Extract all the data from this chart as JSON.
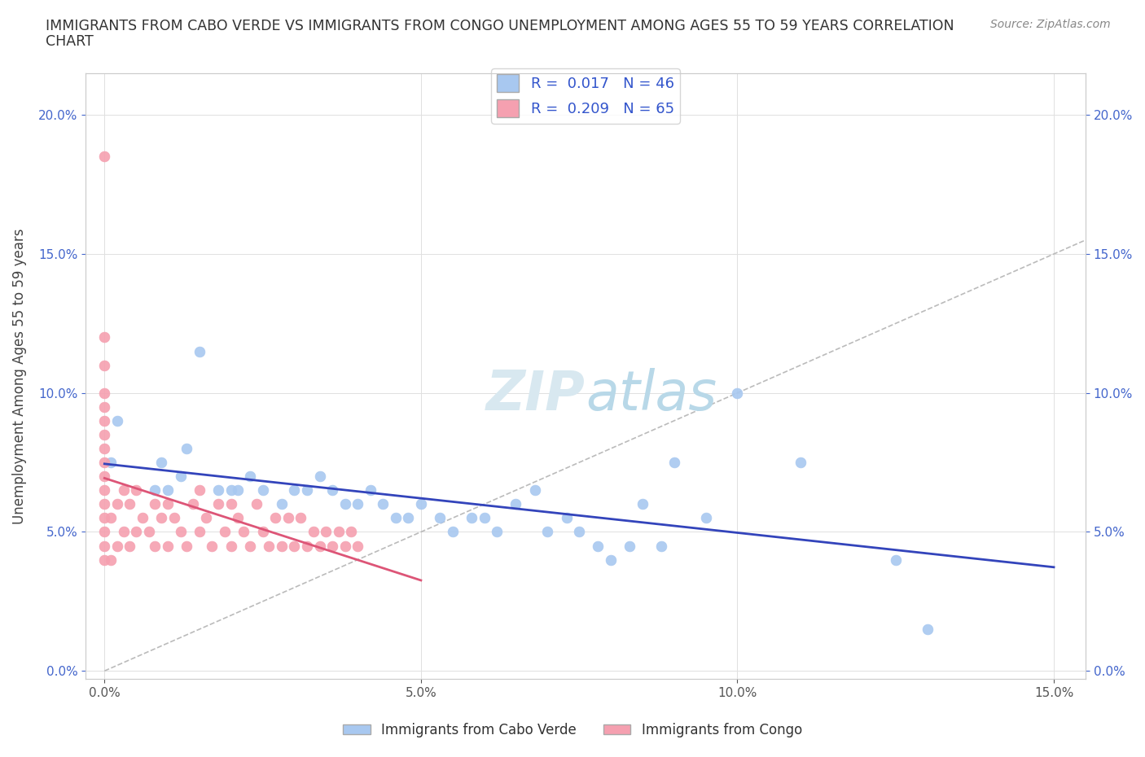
{
  "title_line1": "IMMIGRANTS FROM CABO VERDE VS IMMIGRANTS FROM CONGO UNEMPLOYMENT AMONG AGES 55 TO 59 YEARS CORRELATION",
  "title_line2": "CHART",
  "source": "Source: ZipAtlas.com",
  "ylabel": "Unemployment Among Ages 55 to 59 years",
  "xlim": [
    -0.003,
    0.155
  ],
  "ylim": [
    -0.003,
    0.215
  ],
  "x_ticks": [
    0.0,
    0.05,
    0.1,
    0.15
  ],
  "x_tick_labels": [
    "0.0%",
    "5.0%",
    "10.0%",
    "15.0%"
  ],
  "y_ticks": [
    0.0,
    0.05,
    0.1,
    0.15,
    0.2
  ],
  "y_tick_labels": [
    "0.0%",
    "5.0%",
    "10.0%",
    "15.0%",
    "20.0%"
  ],
  "cabo_verde_color": "#a8c8f0",
  "congo_color": "#f5a0b0",
  "cabo_verde_line_color": "#3344bb",
  "congo_line_color": "#dd5577",
  "diagonal_color": "#bbbbbb",
  "watermark_color": "#d8e8f0",
  "legend_cabo_verde": "Immigrants from Cabo Verde",
  "legend_congo": "Immigrants from Congo",
  "R_cabo": "0.017",
  "N_cabo": "46",
  "R_congo": "0.209",
  "N_congo": "65",
  "cabo_verde_x": [
    0.001,
    0.002,
    0.008,
    0.009,
    0.01,
    0.012,
    0.013,
    0.015,
    0.018,
    0.02,
    0.021,
    0.023,
    0.025,
    0.028,
    0.03,
    0.032,
    0.034,
    0.036,
    0.038,
    0.04,
    0.042,
    0.044,
    0.046,
    0.048,
    0.05,
    0.053,
    0.055,
    0.058,
    0.06,
    0.062,
    0.065,
    0.068,
    0.07,
    0.073,
    0.075,
    0.078,
    0.08,
    0.083,
    0.085,
    0.088,
    0.09,
    0.095,
    0.1,
    0.11,
    0.125,
    0.13
  ],
  "cabo_verde_y": [
    0.075,
    0.09,
    0.065,
    0.075,
    0.065,
    0.07,
    0.08,
    0.115,
    0.065,
    0.065,
    0.065,
    0.07,
    0.065,
    0.06,
    0.065,
    0.065,
    0.07,
    0.065,
    0.06,
    0.06,
    0.065,
    0.06,
    0.055,
    0.055,
    0.06,
    0.055,
    0.05,
    0.055,
    0.055,
    0.05,
    0.06,
    0.065,
    0.05,
    0.055,
    0.05,
    0.045,
    0.04,
    0.045,
    0.06,
    0.045,
    0.075,
    0.055,
    0.1,
    0.075,
    0.04,
    0.015
  ],
  "congo_x": [
    0.0,
    0.0,
    0.0,
    0.0,
    0.0,
    0.0,
    0.0,
    0.0,
    0.0,
    0.0,
    0.0,
    0.0,
    0.0,
    0.0,
    0.0,
    0.0,
    0.001,
    0.001,
    0.002,
    0.002,
    0.003,
    0.003,
    0.004,
    0.004,
    0.005,
    0.005,
    0.006,
    0.007,
    0.008,
    0.008,
    0.009,
    0.01,
    0.01,
    0.011,
    0.012,
    0.013,
    0.014,
    0.015,
    0.015,
    0.016,
    0.017,
    0.018,
    0.019,
    0.02,
    0.02,
    0.021,
    0.022,
    0.023,
    0.024,
    0.025,
    0.026,
    0.027,
    0.028,
    0.029,
    0.03,
    0.031,
    0.032,
    0.033,
    0.034,
    0.035,
    0.036,
    0.037,
    0.038,
    0.039,
    0.04
  ],
  "congo_y": [
    0.04,
    0.045,
    0.05,
    0.055,
    0.06,
    0.065,
    0.07,
    0.075,
    0.08,
    0.085,
    0.09,
    0.095,
    0.1,
    0.11,
    0.12,
    0.185,
    0.04,
    0.055,
    0.045,
    0.06,
    0.05,
    0.065,
    0.045,
    0.06,
    0.05,
    0.065,
    0.055,
    0.05,
    0.045,
    0.06,
    0.055,
    0.045,
    0.06,
    0.055,
    0.05,
    0.045,
    0.06,
    0.05,
    0.065,
    0.055,
    0.045,
    0.06,
    0.05,
    0.045,
    0.06,
    0.055,
    0.05,
    0.045,
    0.06,
    0.05,
    0.045,
    0.055,
    0.045,
    0.055,
    0.045,
    0.055,
    0.045,
    0.05,
    0.045,
    0.05,
    0.045,
    0.05,
    0.045,
    0.05,
    0.045
  ]
}
